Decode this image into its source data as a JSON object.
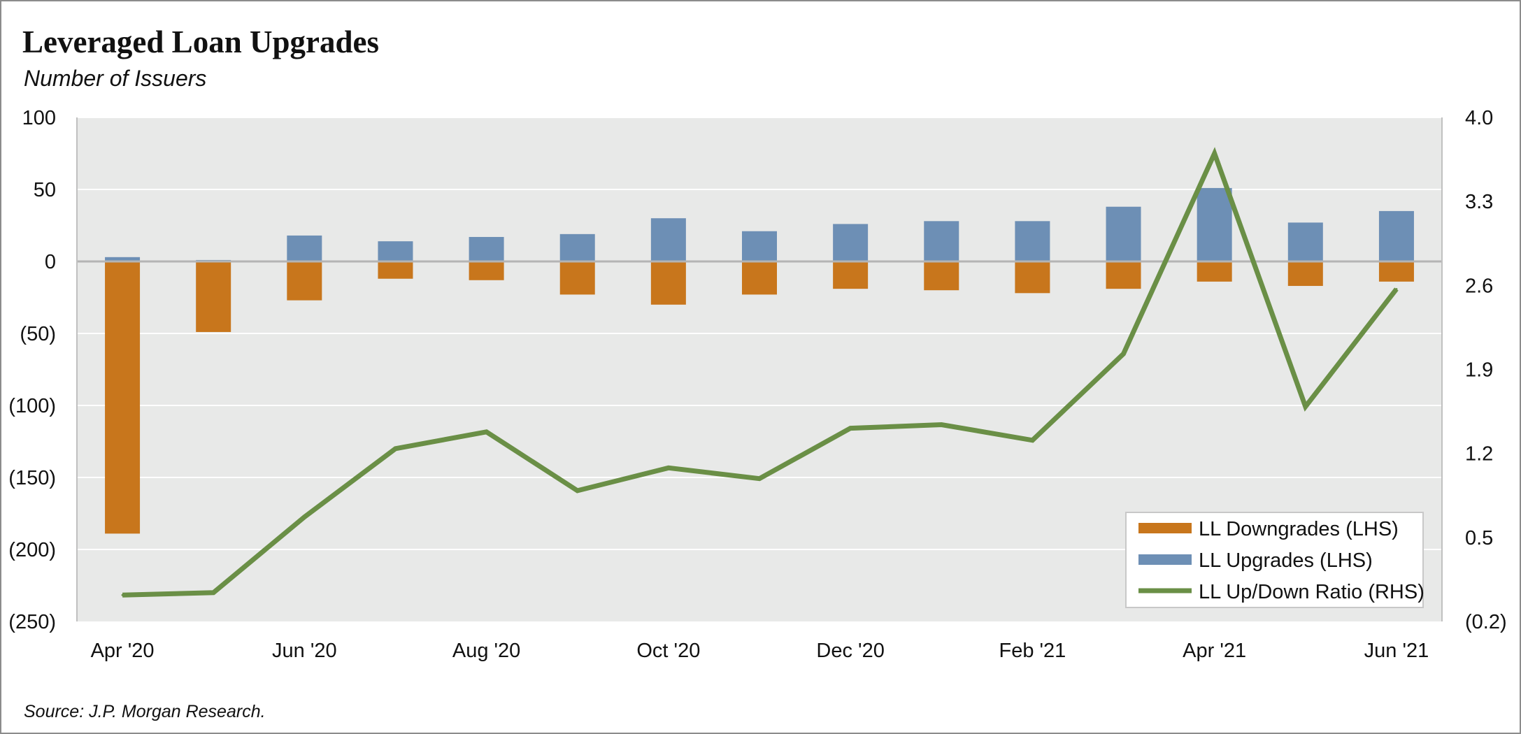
{
  "title": "Leveraged Loan Upgrades",
  "subtitle": "Number of Issuers",
  "source": "Source: J.P. Morgan Research.",
  "colors": {
    "downgrades": "#c8761c",
    "upgrades": "#6d8fb5",
    "ratio": "#6a8f46",
    "plot_background": "#e8e9e8",
    "gridline": "#ffffff",
    "zero_line": "#b4b4b4"
  },
  "chart_data": {
    "type": "bar",
    "categories": [
      "Apr '20",
      "May '20",
      "Jun '20",
      "Jul '20",
      "Aug '20",
      "Sep '20",
      "Oct '20",
      "Nov '20",
      "Dec '20",
      "Jan '21",
      "Feb '21",
      "Mar '21",
      "Apr '21",
      "May '21",
      "Jun '21"
    ],
    "x_tick_labels": [
      "Apr '20",
      "",
      "Jun '20",
      "",
      "Aug '20",
      "",
      "Oct '20",
      "",
      "Dec '20",
      "",
      "Feb '21",
      "",
      "Apr '21",
      "",
      "Jun '21"
    ],
    "series": [
      {
        "name": "LL Downgrades (LHS)",
        "type": "bar",
        "axis": "left",
        "values": [
          -189,
          -49,
          -27,
          -12,
          -13,
          -23,
          -30,
          -23,
          -19,
          -20,
          -22,
          -19,
          -14,
          -17,
          -14
        ]
      },
      {
        "name": "LL Upgrades (LHS)",
        "type": "bar",
        "axis": "left",
        "values": [
          3,
          1,
          18,
          14,
          17,
          19,
          30,
          21,
          26,
          28,
          28,
          38,
          51,
          27,
          35
        ]
      },
      {
        "name": "LL Up/Down Ratio (RHS)",
        "type": "line",
        "axis": "right",
        "values": [
          0.02,
          0.04,
          0.67,
          1.24,
          1.38,
          0.89,
          1.08,
          0.99,
          1.41,
          1.44,
          1.31,
          2.03,
          3.7,
          1.59,
          2.57
        ]
      }
    ],
    "left_axis": {
      "ylim": [
        -250,
        100
      ],
      "ticks": [
        100,
        50,
        0,
        -50,
        -100,
        -150,
        -200,
        -250
      ],
      "tick_labels": [
        "100",
        "50",
        "0",
        "(50)",
        "(100)",
        "(150)",
        "(200)",
        "(250)"
      ]
    },
    "right_axis": {
      "ylim": [
        -0.2,
        4.0
      ],
      "ticks": [
        4.0,
        3.3,
        2.6,
        1.9,
        1.2,
        0.5,
        -0.2
      ],
      "tick_labels": [
        "4.0",
        "3.3",
        "2.6",
        "1.9",
        "1.2",
        "0.5",
        "(0.2)"
      ]
    },
    "grid": true,
    "legend_position": "bottom-right"
  }
}
